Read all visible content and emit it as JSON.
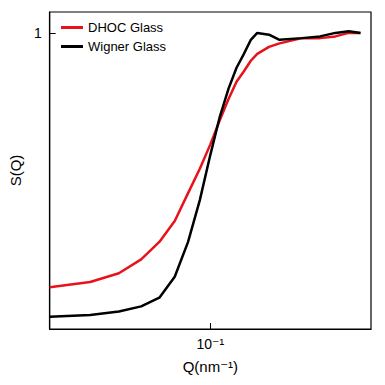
{
  "chart_data": {
    "type": "line",
    "x_label": "Q(nm⁻¹)",
    "y_label": "S(Q)",
    "log": "x",
    "legend": "upper left",
    "xlim": [
      0.02,
      0.5
    ],
    "xticks": [
      {
        "value": 0.1,
        "label": "10⁻¹"
      }
    ],
    "ylim": [
      0.15,
      1.06
    ],
    "yticks": [
      1
    ],
    "x": [
      0.02,
      0.03,
      0.04,
      0.05,
      0.06,
      0.07,
      0.08,
      0.09,
      0.1,
      0.11,
      0.12,
      0.13,
      0.14,
      0.15,
      0.16,
      0.18,
      0.2,
      0.25,
      0.3,
      0.35,
      0.4,
      0.45
    ],
    "series": [
      {
        "name": "DHOC Glass",
        "color": "#e8121b",
        "values": [
          0.27,
          0.285,
          0.31,
          0.35,
          0.4,
          0.46,
          0.54,
          0.61,
          0.68,
          0.75,
          0.81,
          0.86,
          0.89,
          0.92,
          0.94,
          0.96,
          0.97,
          0.985,
          0.985,
          0.99,
          1.0,
          1.0
        ]
      },
      {
        "name": "Wigner Glass",
        "color": "#000000",
        "values": [
          0.185,
          0.19,
          0.2,
          0.215,
          0.24,
          0.3,
          0.4,
          0.52,
          0.65,
          0.76,
          0.84,
          0.9,
          0.94,
          0.98,
          1.0,
          0.995,
          0.98,
          0.985,
          0.99,
          1.0,
          1.005,
          1.0
        ]
      }
    ]
  }
}
